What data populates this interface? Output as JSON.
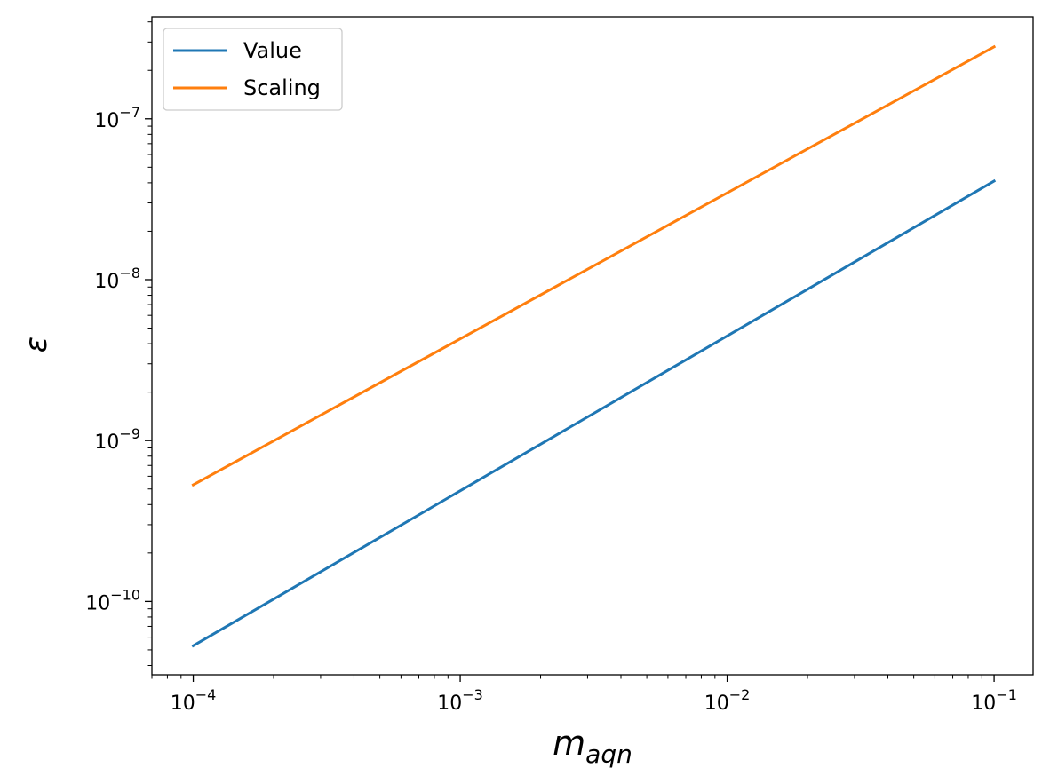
{
  "chart_data": {
    "type": "line",
    "xscale": "log",
    "yscale": "log",
    "xlabel": "m",
    "xlabel_sub": "aqn",
    "ylabel": "ε",
    "xlim": [
      7e-05,
      0.14
    ],
    "ylim": [
      3.5e-11,
      4.3e-07
    ],
    "x_ticks": [
      {
        "value": 0.0001,
        "base": "10",
        "exp": "−4"
      },
      {
        "value": 0.001,
        "base": "10",
        "exp": "−3"
      },
      {
        "value": 0.01,
        "base": "10",
        "exp": "−2"
      },
      {
        "value": 0.1,
        "base": "10",
        "exp": "−1"
      }
    ],
    "y_ticks": [
      {
        "value": 1e-10,
        "base": "10",
        "exp": "−10"
      },
      {
        "value": 1e-09,
        "base": "10",
        "exp": "−9"
      },
      {
        "value": 1e-08,
        "base": "10",
        "exp": "−8"
      },
      {
        "value": 1e-07,
        "base": "10",
        "exp": "−7"
      }
    ],
    "grid": false,
    "legend_position": "top-left",
    "series": [
      {
        "name": "Value",
        "color": "#1f77b4",
        "x": [
          0.0001,
          0.1
        ],
        "y": [
          5.3e-11,
          4.1e-08
        ]
      },
      {
        "name": "Scaling",
        "color": "#ff7f0e",
        "x": [
          0.0001,
          0.1
        ],
        "y": [
          5.3e-10,
          2.8e-07
        ]
      }
    ]
  }
}
